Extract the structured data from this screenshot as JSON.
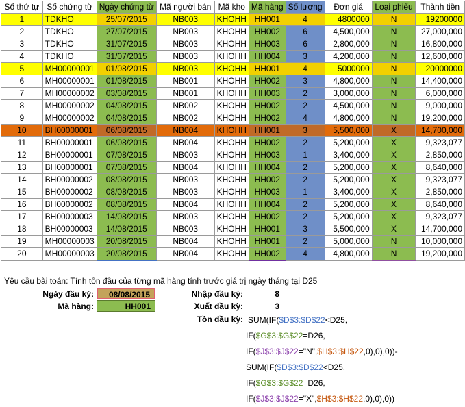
{
  "table": {
    "headers": [
      "Số thứ tự",
      "Số chứng từ",
      "Ngày chứng từ",
      "Mã người bán",
      "Mã kho",
      "Mã hàng",
      "Số lượng",
      "Đơn giá",
      "Loại phiếu",
      "Thành tiền"
    ],
    "rows": [
      [
        "1",
        "TDKHO",
        "25/07/2015",
        "NB003",
        "KHOHH",
        "HH001",
        "4",
        "4800000",
        "N",
        "19200000"
      ],
      [
        "2",
        "TDKHO",
        "27/07/2015",
        "NB003",
        "KHOHH",
        "HH002",
        "6",
        "4,500,000",
        "N",
        "27,000,000"
      ],
      [
        "3",
        "TDKHO",
        "31/07/2015",
        "NB003",
        "KHOHH",
        "HH003",
        "6",
        "2,800,000",
        "N",
        "16,800,000"
      ],
      [
        "4",
        "TDKHO",
        "31/07/2015",
        "NB003",
        "KHOHH",
        "HH004",
        "3",
        "4,200,000",
        "N",
        "12,600,000"
      ],
      [
        "5",
        "MH00000001",
        "01/08/2015",
        "NB003",
        "KHOHH",
        "HH001",
        "4",
        "5000000",
        "N",
        "20000000"
      ],
      [
        "6",
        "MH00000001",
        "01/08/2015",
        "NB001",
        "KHOHH",
        "HH002",
        "3",
        "4,800,000",
        "N",
        "14,400,000"
      ],
      [
        "7",
        "MH00000002",
        "03/08/2015",
        "NB001",
        "KHOHH",
        "HH003",
        "2",
        "3,000,000",
        "N",
        "6,000,000"
      ],
      [
        "8",
        "MH00000002",
        "04/08/2015",
        "NB002",
        "KHOHH",
        "HH002",
        "2",
        "4,500,000",
        "N",
        "9,000,000"
      ],
      [
        "9",
        "MH00000002",
        "04/08/2015",
        "NB002",
        "KHOHH",
        "HH002",
        "4",
        "4,800,000",
        "N",
        "19,200,000"
      ],
      [
        "10",
        "BH00000001",
        "06/08/2015",
        "NB004",
        "KHOHH",
        "HH001",
        "3",
        "5,500,000",
        "X",
        "14,700,000"
      ],
      [
        "11",
        "BH00000001",
        "06/08/2015",
        "NB004",
        "KHOHH",
        "HH002",
        "2",
        "5,200,000",
        "X",
        "9,323,077"
      ],
      [
        "12",
        "BH00000001",
        "07/08/2015",
        "NB003",
        "KHOHH",
        "HH003",
        "1",
        "3,400,000",
        "X",
        "2,850,000"
      ],
      [
        "13",
        "BH00000001",
        "07/08/2015",
        "NB004",
        "KHOHH",
        "HH004",
        "2",
        "5,200,000",
        "X",
        "8,640,000"
      ],
      [
        "14",
        "BH00000002",
        "08/08/2015",
        "NB003",
        "KHOHH",
        "HH002",
        "2",
        "5,200,000",
        "X",
        "9,323,077"
      ],
      [
        "15",
        "BH00000002",
        "08/08/2015",
        "NB003",
        "KHOHH",
        "HH003",
        "1",
        "3,400,000",
        "X",
        "2,850,000"
      ],
      [
        "16",
        "BH00000002",
        "08/08/2015",
        "NB004",
        "KHOHH",
        "HH004",
        "2",
        "5,200,000",
        "X",
        "8,640,000"
      ],
      [
        "17",
        "BH00000003",
        "14/08/2015",
        "NB003",
        "KHOHH",
        "HH002",
        "2",
        "5,200,000",
        "X",
        "9,323,077"
      ],
      [
        "18",
        "BH00000003",
        "14/08/2015",
        "NB003",
        "KHOHH",
        "HH001",
        "3",
        "5,500,000",
        "X",
        "14,700,000"
      ],
      [
        "19",
        "MH00000003",
        "20/08/2015",
        "NB004",
        "KHOHH",
        "HH001",
        "2",
        "5,000,000",
        "N",
        "10,000,000"
      ],
      [
        "20",
        "MH00000003",
        "20/08/2015",
        "NB004",
        "KHOHH",
        "HH002",
        "4",
        "4,800,000",
        "N",
        "19,200,000"
      ]
    ]
  },
  "task": {
    "description": "Yêu cầu bài toán: Tính tồn đầu của từng mã hàng tính trước giá trị ngày tháng tại D25",
    "date_label": "Ngày đầu kỳ:",
    "date_value": "08/08/2015",
    "item_label": "Mã hàng:",
    "item_value": "HH001",
    "import_label": "Nhập đầu kỳ:",
    "import_value": "8",
    "export_label": "Xuất đầu kỳ:",
    "export_value": "3",
    "balance_label": "Tồn đầu kỳ:"
  },
  "formula": {
    "l1a": "=SUM(IF(",
    "l1b": "$D$3:$D$22",
    "l1c": "<D25,",
    "l2a": "IF(",
    "l2b": "$G$3:$G$22",
    "l2c": "=D26,",
    "l3a": "IF(",
    "l3b": "$J$3:$J$22",
    "l3c": "=\"N\",",
    "l3d": "$H$3:$H$22",
    "l3e": ",0),0),0))-",
    "l4a": "SUM(IF(",
    "l4b": "$D$3:$D$22",
    "l4c": "<D25,",
    "l5a": "IF(",
    "l5b": "$G$3:$G$22",
    "l5c": "=D26,",
    "l6a": "IF(",
    "l6b": "$J$3:$J$22",
    "l6c": "=\"X\",",
    "l6d": "$H$3:$H$22",
    "l6e": ",0),0),0))"
  },
  "colors": {
    "highlight_yellow": "#ffff00",
    "highlight_orange": "#e26b0a",
    "date_green": "#8cbc50",
    "qty_blue": "#6f8fc8",
    "ref_blue": "#4472c4"
  }
}
